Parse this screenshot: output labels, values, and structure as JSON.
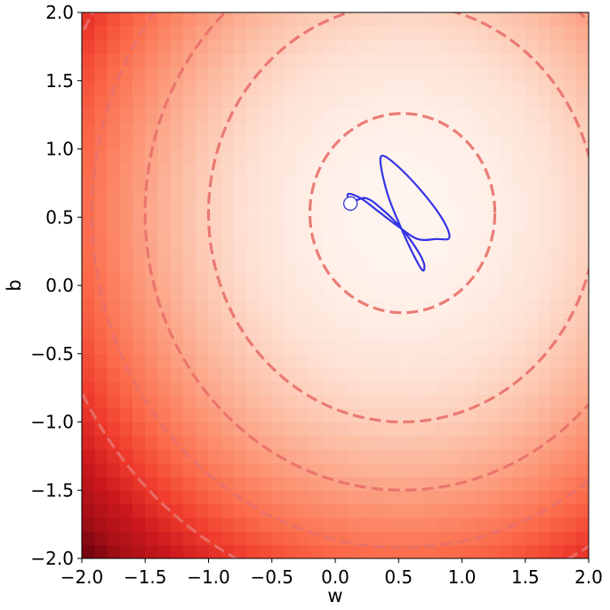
{
  "chart_data": {
    "type": "heatmap",
    "title": "",
    "xlabel": "w",
    "ylabel": "b",
    "xlim": [
      -2.0,
      2.0
    ],
    "ylim": [
      -2.0,
      2.0
    ],
    "x_ticks": [
      -2.0,
      -1.5,
      -1.0,
      -0.5,
      0.0,
      0.5,
      1.0,
      1.5,
      2.0
    ],
    "x_tick_labels": [
      "−2.0",
      "−1.5",
      "−1.0",
      "−0.5",
      "0.0",
      "0.5",
      "1.0",
      "1.5",
      "2.0"
    ],
    "y_ticks": [
      -2.0,
      -1.5,
      -1.0,
      -0.5,
      0.0,
      0.5,
      1.0,
      1.5,
      2.0
    ],
    "y_tick_labels": [
      "−2.0",
      "−1.5",
      "−1.0",
      "−0.5",
      "0.0",
      "0.5",
      "1.0",
      "1.5",
      "2.0"
    ],
    "grid": false,
    "heatmap": {
      "colormap": "Reds",
      "resolution": 40,
      "minimum": [
        0.53,
        0.53
      ],
      "value_function": "(w-0.53)^2 + (b-0.53)^2",
      "value_range": [
        0,
        12.7
      ]
    },
    "contours": {
      "center": [
        0.53,
        0.53
      ],
      "radii": [
        0.73,
        1.53,
        2.03,
        2.45,
        2.85
      ],
      "color": "#e8706a",
      "style": "dashed"
    },
    "trajectory": {
      "color": "#3333e6",
      "start": [
        0.12,
        0.6
      ],
      "path": [
        [
          0.12,
          0.6
        ],
        [
          0.1,
          0.67
        ],
        [
          0.2,
          0.64
        ],
        [
          0.33,
          0.55
        ],
        [
          0.5,
          0.43
        ],
        [
          0.65,
          0.34
        ],
        [
          0.8,
          0.34
        ],
        [
          0.9,
          0.35
        ],
        [
          0.85,
          0.48
        ],
        [
          0.7,
          0.67
        ],
        [
          0.52,
          0.85
        ],
        [
          0.38,
          0.95
        ],
        [
          0.36,
          0.88
        ],
        [
          0.42,
          0.65
        ],
        [
          0.52,
          0.42
        ],
        [
          0.62,
          0.22
        ],
        [
          0.69,
          0.11
        ],
        [
          0.7,
          0.16
        ],
        [
          0.64,
          0.27
        ],
        [
          0.52,
          0.42
        ],
        [
          0.38,
          0.55
        ],
        [
          0.24,
          0.64
        ],
        [
          0.12,
          0.6
        ]
      ]
    }
  }
}
